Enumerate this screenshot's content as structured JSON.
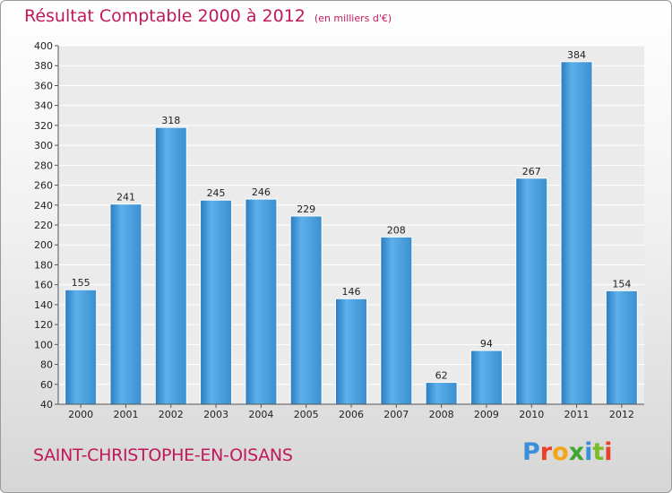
{
  "header": {
    "title": "Résultat Comptable 2000 à 2012",
    "subtitle": "(en milliers d'€)"
  },
  "footer": {
    "commune": "SAINT-CHRISTOPHE-EN-OISANS",
    "brand": "Proxiti",
    "brand_colors": [
      "#3a8fd8",
      "#e8402a",
      "#f2a516",
      "#3fa62e",
      "#3a8fd8",
      "#7dbb2a",
      "#e8402a"
    ]
  },
  "chart_data": {
    "type": "bar",
    "categories": [
      "2000",
      "2001",
      "2002",
      "2003",
      "2004",
      "2005",
      "2006",
      "2007",
      "2008",
      "2009",
      "2010",
      "2011",
      "2012"
    ],
    "values": [
      155,
      241,
      318,
      245,
      246,
      229,
      146,
      208,
      62,
      94,
      267,
      384,
      154
    ],
    "ylim": [
      40,
      400
    ],
    "yticks": [
      40,
      60,
      80,
      100,
      120,
      140,
      160,
      180,
      200,
      220,
      240,
      260,
      280,
      300,
      320,
      340,
      360,
      380,
      400
    ],
    "grid": true,
    "bar_color_light": "#5db0ea",
    "bar_color_dark": "#2a7cc0",
    "plot_background": "#ebebeb",
    "grid_color": "#ffffff"
  }
}
